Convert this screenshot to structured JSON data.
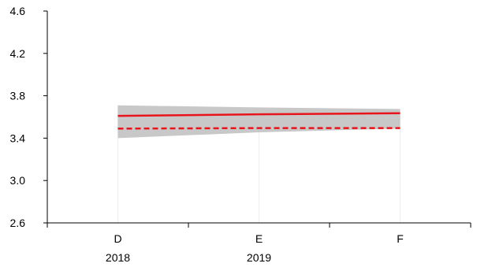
{
  "chart_data": {
    "type": "line",
    "categories": [
      "D",
      "E",
      "F"
    ],
    "year_labels": [
      {
        "label": "2018",
        "category_index": 0
      },
      {
        "label": "2019",
        "category_index": 1
      }
    ],
    "ylim": [
      2.6,
      4.6
    ],
    "yticks": [
      "2.6",
      "3.0",
      "3.4",
      "3.8",
      "4.2",
      "4.6"
    ],
    "grid": false,
    "band": {
      "color": "#c8c8c8",
      "lower": [
        3.4,
        3.455,
        3.49
      ],
      "upper": [
        3.71,
        3.69,
        3.675
      ]
    },
    "series": [
      {
        "style": "solid",
        "color": "#e8141b",
        "values": [
          3.61,
          3.625,
          3.635
        ]
      },
      {
        "style": "dashed",
        "color": "#e8141b",
        "values": [
          3.49,
          3.495,
          3.495
        ]
      }
    ]
  },
  "colors": {
    "axis": "#000000",
    "vertical_guides": "#eeeeee"
  }
}
